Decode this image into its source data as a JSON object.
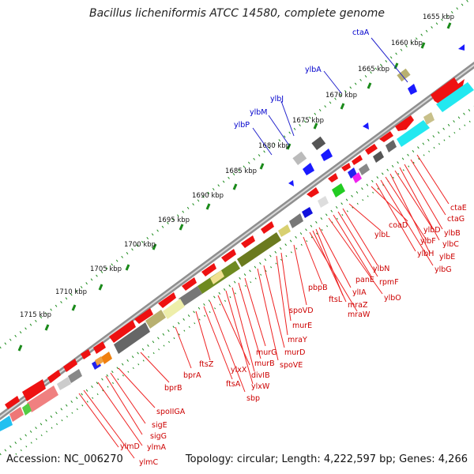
{
  "title": "Bacillus licheniformis ATCC 14580, complete genome",
  "footer": {
    "accession": "Accession: NC_006270",
    "summary": "Topology: circular; Length: 4,222,597 bp; Genes: 4,266"
  },
  "colors": {
    "forward_cds": "#ee1111",
    "label_red": "#cc0000",
    "label_blue": "#0000cc",
    "tick_green": "#1a8a1a",
    "backbone": "#999999"
  },
  "scale": {
    "unit": "kbp",
    "labels": [
      "1655 kbp",
      "1660 kbp",
      "1665 kbp",
      "1670 kbp",
      "1675 kbp",
      "1680 kbp",
      "1685 kbp",
      "1690 kbp",
      "1695 kbp",
      "1700 kbp",
      "1705 kbp",
      "1710 kbp",
      "1715 kbp"
    ]
  },
  "blue_labels": [
    "ctaA",
    "ylbA",
    "ylbJ",
    "ylbM",
    "ylbP"
  ],
  "red_labels": [
    "ctaE",
    "ctaG",
    "ylbB",
    "ylbC",
    "ylbD",
    "ylbE",
    "ylbF",
    "ylbG",
    "ylbH",
    "coaD",
    "ylbL",
    "ylbN",
    "rpmF",
    "panE",
    "ylbO",
    "pbpB",
    "ylIA",
    "ftsL",
    "mraZ",
    "mraW",
    "spoVD",
    "murE",
    "mraY",
    "murD",
    "spoVE",
    "murG",
    "murB",
    "divIB",
    "ylxW",
    "ylxX",
    "sbp",
    "ftsA",
    "ftsZ",
    "bprA",
    "bprB",
    "spoIIGA",
    "sigE",
    "sigG",
    "ylmA",
    "ylmC",
    "ylmD"
  ]
}
